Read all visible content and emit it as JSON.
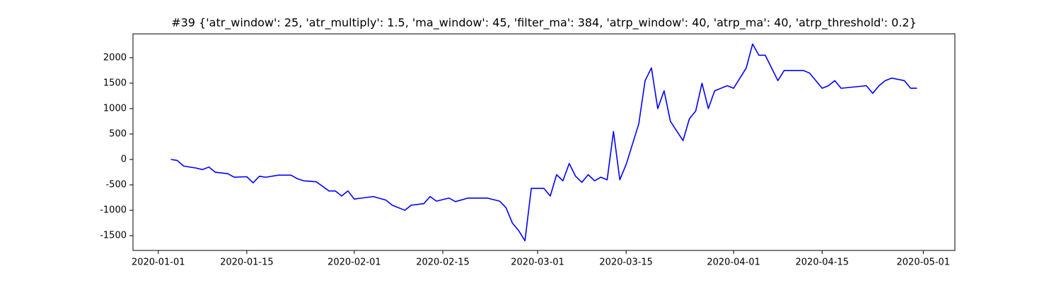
{
  "chart_data": {
    "type": "line",
    "title": "#39 {'atr_window': 25, 'atr_multiply': 1.5, 'ma_window': 45, 'filter_ma': 384, 'atrp_window': 40, 'atrp_ma': 40, 'atrp_threshold': 0.2}",
    "color": "#0000ff",
    "x": [
      "2020-01-03",
      "2020-01-04",
      "2020-01-05",
      "2020-01-07",
      "2020-01-08",
      "2020-01-09",
      "2020-01-10",
      "2020-01-12",
      "2020-01-13",
      "2020-01-15",
      "2020-01-16",
      "2020-01-17",
      "2020-01-18",
      "2020-01-20",
      "2020-01-22",
      "2020-01-23",
      "2020-01-24",
      "2020-01-26",
      "2020-01-28",
      "2020-01-29",
      "2020-01-30",
      "2020-01-31",
      "2020-02-01",
      "2020-02-04",
      "2020-02-06",
      "2020-02-07",
      "2020-02-09",
      "2020-02-10",
      "2020-02-12",
      "2020-02-13",
      "2020-02-14",
      "2020-02-16",
      "2020-02-17",
      "2020-02-19",
      "2020-02-22",
      "2020-02-24",
      "2020-02-25",
      "2020-02-26",
      "2020-02-27",
      "2020-02-28",
      "2020-02-29",
      "2020-03-02",
      "2020-03-03",
      "2020-03-04",
      "2020-03-05",
      "2020-03-06",
      "2020-03-07",
      "2020-03-08",
      "2020-03-09",
      "2020-03-10",
      "2020-03-11",
      "2020-03-12",
      "2020-03-13",
      "2020-03-14",
      "2020-03-15",
      "2020-03-17",
      "2020-03-18",
      "2020-03-19",
      "2020-03-20",
      "2020-03-21",
      "2020-03-22",
      "2020-03-24",
      "2020-03-25",
      "2020-03-26",
      "2020-03-27",
      "2020-03-28",
      "2020-03-29",
      "2020-03-31",
      "2020-04-01",
      "2020-04-02",
      "2020-04-03",
      "2020-04-04",
      "2020-04-05",
      "2020-04-06",
      "2020-04-07",
      "2020-04-08",
      "2020-04-09",
      "2020-04-12",
      "2020-04-13",
      "2020-04-14",
      "2020-04-15",
      "2020-04-16",
      "2020-04-17",
      "2020-04-18",
      "2020-04-22",
      "2020-04-23",
      "2020-04-24",
      "2020-04-25",
      "2020-04-26",
      "2020-04-28",
      "2020-04-29",
      "2020-04-30"
    ],
    "values": [
      0,
      -20,
      -130,
      -170,
      -200,
      -150,
      -250,
      -280,
      -350,
      -340,
      -460,
      -330,
      -350,
      -310,
      -310,
      -380,
      -420,
      -440,
      -620,
      -620,
      -720,
      -620,
      -780,
      -730,
      -800,
      -900,
      -1000,
      -900,
      -870,
      -730,
      -820,
      -760,
      -830,
      -760,
      -760,
      -820,
      -950,
      -1250,
      -1400,
      -1600,
      -570,
      -570,
      -720,
      -300,
      -420,
      -80,
      -330,
      -450,
      -300,
      -420,
      -350,
      -400,
      550,
      -400,
      -100,
      700,
      1550,
      1800,
      1000,
      1350,
      750,
      370,
      800,
      950,
      1500,
      1000,
      1350,
      1450,
      1400,
      1600,
      1800,
      2270,
      2050,
      2050,
      1800,
      1550,
      1750,
      1750,
      1700,
      1550,
      1400,
      1450,
      1550,
      1400,
      1450,
      1300,
      1450,
      1550,
      1600,
      1550,
      1400,
      1400
    ],
    "xlim": [
      "2019-12-28",
      "2020-05-06"
    ],
    "xticks": [
      "2020-01-01",
      "2020-01-15",
      "2020-02-01",
      "2020-02-15",
      "2020-03-01",
      "2020-03-15",
      "2020-04-01",
      "2020-04-15",
      "2020-05-01"
    ],
    "ylim": [
      -1790,
      2470
    ],
    "yticks": [
      -1500,
      -1000,
      -500,
      0,
      500,
      1000,
      1500,
      2000
    ]
  }
}
